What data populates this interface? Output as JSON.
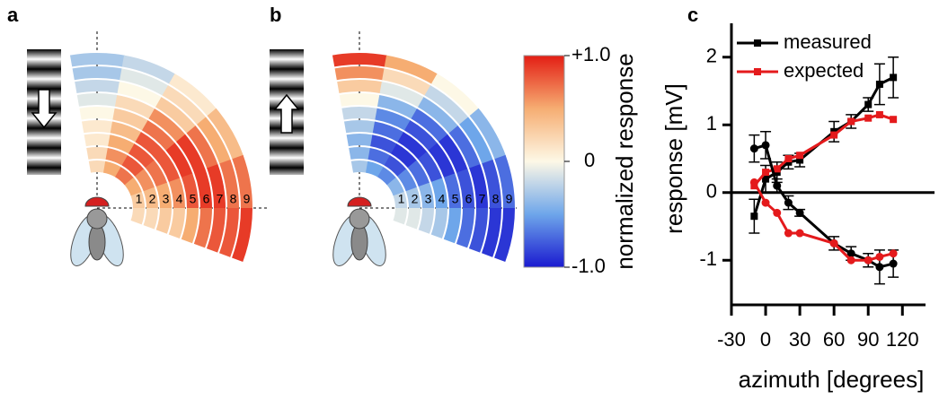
{
  "panels": [
    {
      "label": "a",
      "rings": [
        [
          0.2,
          0.5,
          0.7,
          0.5,
          0.3,
          0.2
        ],
        [
          0.2,
          0.6,
          0.8,
          0.6,
          0.4,
          0.2
        ],
        [
          0.1,
          0.5,
          0.8,
          0.7,
          0.5,
          0.3
        ],
        [
          0.1,
          0.4,
          0.8,
          0.8,
          0.6,
          0.3
        ],
        [
          0.0,
          0.3,
          0.7,
          0.9,
          0.8,
          0.5
        ],
        [
          -0.1,
          0.2,
          0.6,
          0.9,
          0.9,
          0.7
        ],
        [
          -0.2,
          0.0,
          0.3,
          0.7,
          0.9,
          0.8
        ],
        [
          -0.3,
          -0.1,
          0.2,
          0.5,
          0.7,
          0.8
        ],
        [
          -0.3,
          -0.2,
          0.1,
          0.4,
          0.7,
          0.9
        ]
      ]
    },
    {
      "label": "b",
      "rings": [
        [
          -0.3,
          -0.5,
          -0.6,
          -0.4,
          -0.2,
          -0.1
        ],
        [
          -0.4,
          -0.7,
          -0.8,
          -0.6,
          -0.3,
          -0.1
        ],
        [
          -0.4,
          -0.8,
          -0.9,
          -0.7,
          -0.4,
          -0.2
        ],
        [
          -0.3,
          -0.7,
          -0.9,
          -0.8,
          -0.5,
          -0.3
        ],
        [
          -0.2,
          -0.6,
          -0.8,
          -0.9,
          -0.7,
          -0.5
        ],
        [
          0.0,
          -0.4,
          -0.7,
          -0.9,
          -0.8,
          -0.7
        ],
        [
          0.3,
          -0.1,
          -0.4,
          -0.7,
          -0.9,
          -0.8
        ],
        [
          0.6,
          0.2,
          -0.2,
          -0.5,
          -0.8,
          -0.9
        ],
        [
          0.9,
          0.5,
          0.0,
          -0.4,
          -0.7,
          -0.9
        ]
      ]
    }
  ],
  "ring_labels": [
    "1",
    "2",
    "3",
    "4",
    "5",
    "6",
    "7",
    "8",
    "9"
  ],
  "colorbar": {
    "title": "normalized response",
    "lim": [
      -1,
      1
    ],
    "colormap": [
      "#1a1ad0",
      "#6ea6ea",
      "#fdf8e6",
      "#f6ad72",
      "#e31e14"
    ],
    "ticks": [
      {
        "value": 1,
        "label": "+1.0"
      },
      0,
      {
        "value": -1,
        "label": "-1.0"
      }
    ]
  },
  "chart_data": {
    "type": "line",
    "panel_label": "c",
    "x_label": "azimuth [degrees]",
    "y_label": "response [mV]",
    "x": [
      -10,
      0,
      10,
      20,
      30,
      60,
      75,
      90,
      100,
      112
    ],
    "xlim": [
      -30,
      145
    ],
    "xticks": [
      -30,
      0,
      30,
      60,
      90,
      120
    ],
    "ylim": [
      -1.5,
      2.5
    ],
    "yticks": [
      -1,
      0,
      1,
      2
    ],
    "legend": "top-left",
    "series": [
      {
        "name": "measured",
        "color": "#000000",
        "marker": "square",
        "values": [
          -0.35,
          0.2,
          0.3,
          0.45,
          0.48,
          0.9,
          1.05,
          1.3,
          1.6,
          1.7
        ],
        "errors": [
          0.25,
          0.2,
          0.15,
          0.1,
          0.1,
          0.15,
          0.1,
          0.1,
          0.3,
          0.3
        ]
      },
      {
        "name": "expected",
        "color": "#e41a1c",
        "marker": "square",
        "values": [
          0.1,
          0.3,
          0.35,
          0.5,
          0.55,
          0.85,
          1.05,
          1.1,
          1.15,
          1.08
        ]
      },
      {
        "color": "#000000",
        "marker": "circle",
        "values": [
          0.65,
          0.7,
          0.1,
          -0.15,
          -0.3,
          -0.75,
          -0.9,
          -1.0,
          -1.1,
          -1.05
        ],
        "errors": [
          0.2,
          0.2,
          0.1,
          0.1,
          0.05,
          0.1,
          0.1,
          0.1,
          0.25,
          0.2
        ]
      },
      {
        "color": "#e41a1c",
        "marker": "circle",
        "values": [
          0.15,
          -0.15,
          -0.3,
          -0.6,
          -0.6,
          -0.75,
          -1.0,
          -1.0,
          -0.95,
          -0.9
        ]
      }
    ]
  }
}
